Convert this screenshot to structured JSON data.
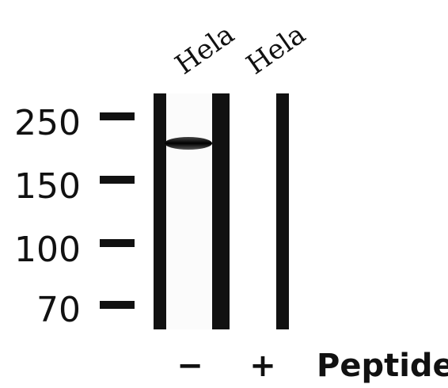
{
  "lanes": [
    {
      "label": "Hela",
      "peptide": "−"
    },
    {
      "label": "Hela",
      "peptide": "+"
    }
  ],
  "markers": [
    "250",
    "150",
    "100",
    "70"
  ],
  "peptide_label": "Peptide"
}
